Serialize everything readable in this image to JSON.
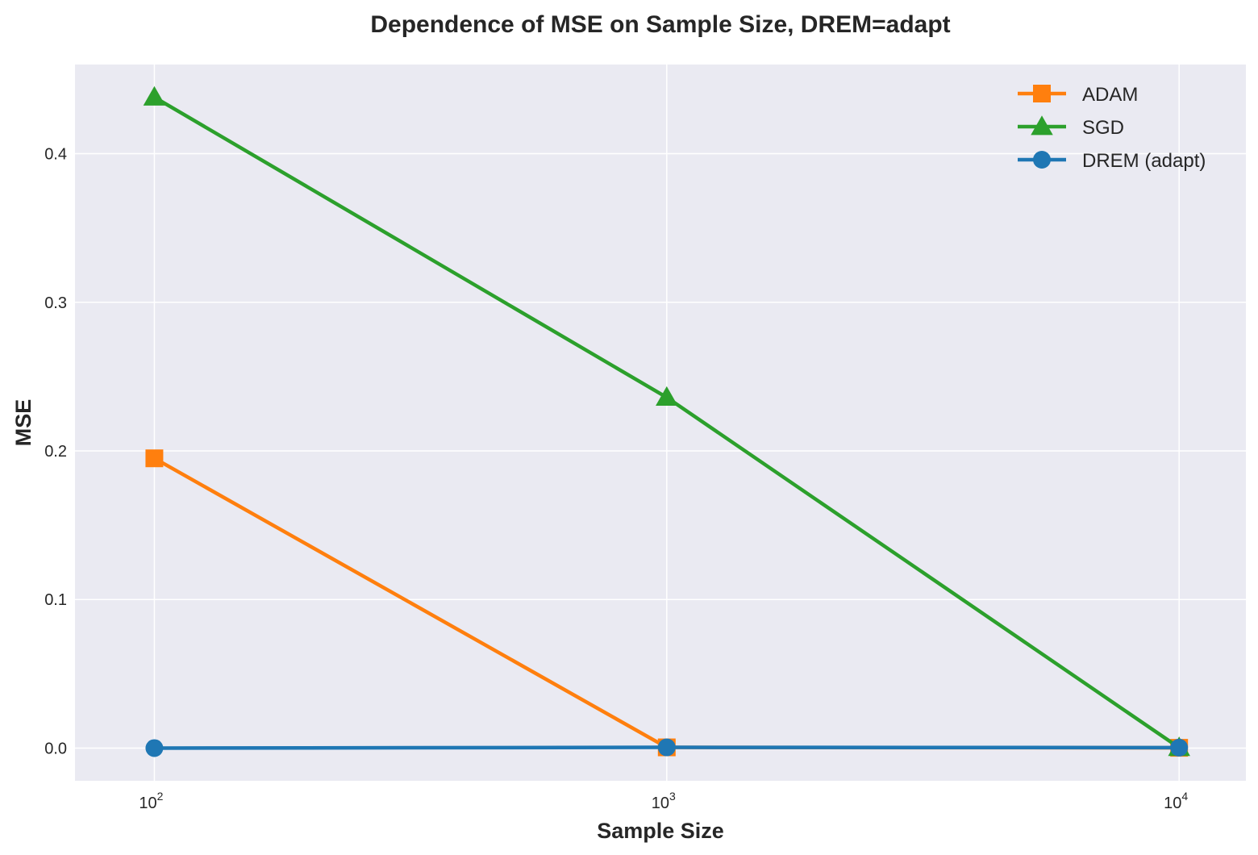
{
  "chart_data": {
    "type": "line",
    "title": "Dependence of MSE on Sample Size, DREM=adapt",
    "xlabel": "Sample Size",
    "ylabel": "MSE",
    "xscale": "log",
    "x": [
      100,
      1000,
      10000
    ],
    "xlim": [
      70,
      13500
    ],
    "ylim": [
      -0.022,
      0.46
    ],
    "xticks": [
      100,
      1000,
      10000
    ],
    "xtick_labels": [
      {
        "base": "10",
        "exp": "2"
      },
      {
        "base": "10",
        "exp": "3"
      },
      {
        "base": "10",
        "exp": "4"
      }
    ],
    "yticks": [
      0.0,
      0.1,
      0.2,
      0.3,
      0.4
    ],
    "ytick_labels": [
      "0.0",
      "0.1",
      "0.2",
      "0.3",
      "0.4"
    ],
    "grid": true,
    "legend_position": "top-right",
    "background": "#eaeaf2",
    "series": [
      {
        "name": "ADAM",
        "marker": "square",
        "color": "#ff7f0e",
        "values": [
          0.195,
          0.0005,
          0.0002
        ]
      },
      {
        "name": "SGD",
        "marker": "triangle",
        "color": "#2ca02c",
        "values": [
          0.438,
          0.236,
          0.0003
        ]
      },
      {
        "name": "DREM (adapt)",
        "marker": "circle",
        "color": "#1f77b4",
        "values": [
          0.0,
          0.0005,
          0.0003
        ]
      }
    ]
  }
}
